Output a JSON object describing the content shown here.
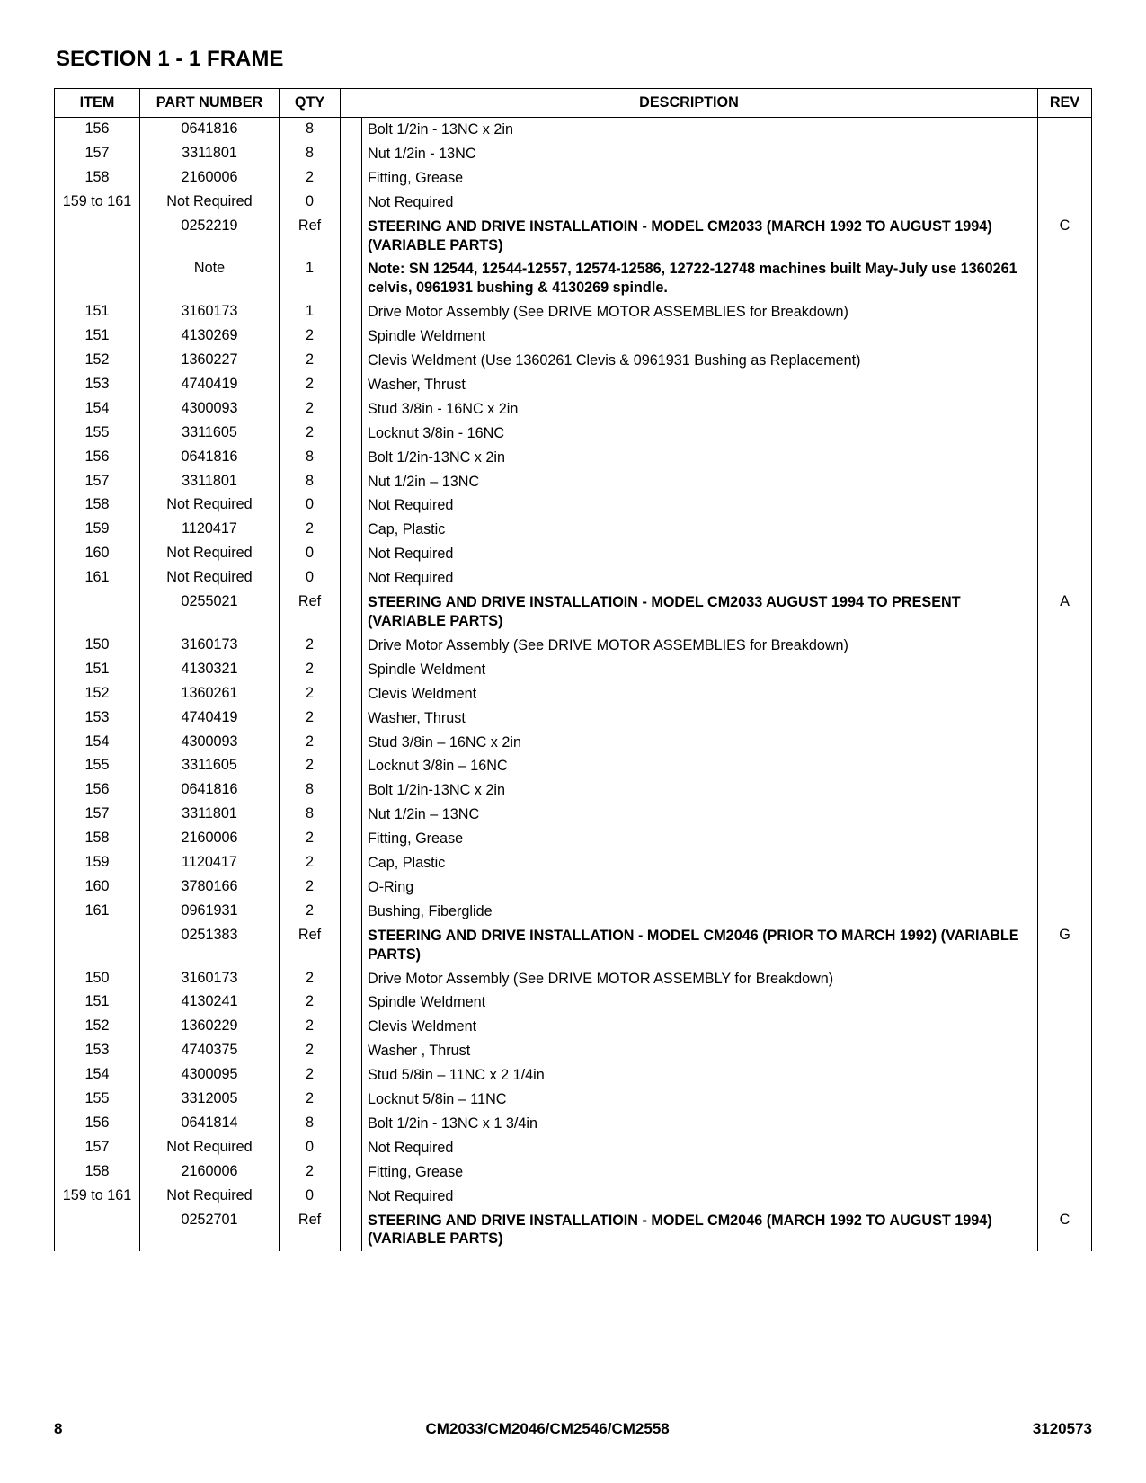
{
  "section_title": "SECTION 1 - 1 FRAME",
  "columns": {
    "item": "ITEM",
    "part": "PART NUMBER",
    "qty": "QTY",
    "desc": "DESCRIPTION",
    "rev": "REV"
  },
  "rows": [
    {
      "item": "156",
      "part": "0641816",
      "qty": "8",
      "desc": "Bolt 1/2in - 13NC x 2in",
      "rev": ""
    },
    {
      "item": "157",
      "part": "3311801",
      "qty": "8",
      "desc": "Nut 1/2in - 13NC",
      "rev": ""
    },
    {
      "item": "158",
      "part": "2160006",
      "qty": "2",
      "desc": "Fitting, Grease",
      "rev": ""
    },
    {
      "item": "159 to 161",
      "part": "Not Required",
      "qty": "0",
      "desc": "Not Required",
      "rev": ""
    },
    {
      "item": "",
      "part": "0252219",
      "qty": "Ref",
      "desc": "STEERING AND DRIVE INSTALLATIOIN - MODEL CM2033 (MARCH 1992 TO AUGUST 1994) (VARIABLE PARTS)",
      "rev": "C",
      "bold": true
    },
    {
      "item": "",
      "part": "Note",
      "qty": "1",
      "desc": "Note: SN 12544, 12544-12557, 12574-12586, 12722-12748 machines built May-July use 1360261 celvis, 0961931 bushing & 4130269 spindle.",
      "rev": "",
      "bold": true
    },
    {
      "item": "151",
      "part": "3160173",
      "qty": "1",
      "desc": "Drive Motor Assembly (See DRIVE MOTOR ASSEMBLIES for Breakdown)",
      "rev": ""
    },
    {
      "item": "151",
      "part": "4130269",
      "qty": "2",
      "desc": "Spindle Weldment",
      "rev": ""
    },
    {
      "item": "152",
      "part": "1360227",
      "qty": "2",
      "desc": "Clevis Weldment (Use 1360261 Clevis & 0961931 Bushing as Replacement)",
      "rev": ""
    },
    {
      "item": "153",
      "part": "4740419",
      "qty": "2",
      "desc": "Washer, Thrust",
      "rev": ""
    },
    {
      "item": "154",
      "part": "4300093",
      "qty": "2",
      "desc": "Stud 3/8in - 16NC x 2in",
      "rev": ""
    },
    {
      "item": "155",
      "part": "3311605",
      "qty": "2",
      "desc": "Locknut 3/8in - 16NC",
      "rev": ""
    },
    {
      "item": "156",
      "part": "0641816",
      "qty": "8",
      "desc": "Bolt 1/2in-13NC x 2in",
      "rev": ""
    },
    {
      "item": "157",
      "part": "3311801",
      "qty": "8",
      "desc": "Nut 1/2in – 13NC",
      "rev": ""
    },
    {
      "item": "158",
      "part": "Not Required",
      "qty": "0",
      "desc": "Not Required",
      "rev": ""
    },
    {
      "item": "159",
      "part": "1120417",
      "qty": "2",
      "desc": "Cap, Plastic",
      "rev": ""
    },
    {
      "item": "160",
      "part": "Not Required",
      "qty": "0",
      "desc": "Not Required",
      "rev": ""
    },
    {
      "item": "161",
      "part": "Not Required",
      "qty": "0",
      "desc": "Not Required",
      "rev": ""
    },
    {
      "item": "",
      "part": "0255021",
      "qty": "Ref",
      "desc": "STEERING AND DRIVE INSTALLATIOIN - MODEL CM2033 AUGUST 1994 TO PRESENT (VARIABLE PARTS)",
      "rev": "A",
      "bold": true
    },
    {
      "item": "150",
      "part": "3160173",
      "qty": "2",
      "desc": "Drive Motor Assembly (See DRIVE MOTOR ASSEMBLIES for Breakdown)",
      "rev": ""
    },
    {
      "item": "151",
      "part": "4130321",
      "qty": "2",
      "desc": "Spindle Weldment",
      "rev": ""
    },
    {
      "item": "152",
      "part": "1360261",
      "qty": "2",
      "desc": "Clevis Weldment",
      "rev": ""
    },
    {
      "item": "153",
      "part": "4740419",
      "qty": "2",
      "desc": "Washer, Thrust",
      "rev": ""
    },
    {
      "item": "154",
      "part": "4300093",
      "qty": "2",
      "desc": "Stud 3/8in – 16NC x 2in",
      "rev": ""
    },
    {
      "item": "155",
      "part": "3311605",
      "qty": "2",
      "desc": "Locknut 3/8in – 16NC",
      "rev": ""
    },
    {
      "item": "156",
      "part": "0641816",
      "qty": "8",
      "desc": "Bolt 1/2in-13NC x 2in",
      "rev": ""
    },
    {
      "item": "157",
      "part": "3311801",
      "qty": "8",
      "desc": "Nut 1/2in – 13NC",
      "rev": ""
    },
    {
      "item": "158",
      "part": "2160006",
      "qty": "2",
      "desc": "Fitting, Grease",
      "rev": ""
    },
    {
      "item": "159",
      "part": "1120417",
      "qty": "2",
      "desc": "Cap, Plastic",
      "rev": ""
    },
    {
      "item": "160",
      "part": "3780166",
      "qty": "2",
      "desc": "O-Ring",
      "rev": ""
    },
    {
      "item": "161",
      "part": "0961931",
      "qty": "2",
      "desc": "Bushing, Fiberglide",
      "rev": ""
    },
    {
      "item": "",
      "part": "0251383",
      "qty": "Ref",
      "desc": "STEERING AND DRIVE INSTALLATION - MODEL CM2046 (PRIOR TO MARCH 1992) (VARIABLE PARTS)",
      "rev": "G",
      "bold": true
    },
    {
      "item": "150",
      "part": "3160173",
      "qty": "2",
      "desc": "Drive Motor Assembly (See DRIVE MOTOR ASSEMBLY for Breakdown)",
      "rev": ""
    },
    {
      "item": "151",
      "part": "4130241",
      "qty": "2",
      "desc": "Spindle Weldment",
      "rev": ""
    },
    {
      "item": "152",
      "part": "1360229",
      "qty": "2",
      "desc": "Clevis Weldment",
      "rev": ""
    },
    {
      "item": "153",
      "part": "4740375",
      "qty": "2",
      "desc": "Washer , Thrust",
      "rev": ""
    },
    {
      "item": "154",
      "part": "4300095",
      "qty": "2",
      "desc": "Stud 5/8in – 11NC x 2 1/4in",
      "rev": ""
    },
    {
      "item": "155",
      "part": "3312005",
      "qty": "2",
      "desc": "Locknut 5/8in – 11NC",
      "rev": ""
    },
    {
      "item": "156",
      "part": "0641814",
      "qty": "8",
      "desc": "Bolt 1/2in - 13NC x 1 3/4in",
      "rev": ""
    },
    {
      "item": "157",
      "part": "Not Required",
      "qty": "0",
      "desc": "Not Required",
      "rev": ""
    },
    {
      "item": "158",
      "part": "2160006",
      "qty": "2",
      "desc": "Fitting, Grease",
      "rev": ""
    },
    {
      "item": "159 to 161",
      "part": "Not Required",
      "qty": "0",
      "desc": "Not Required",
      "rev": ""
    },
    {
      "item": "",
      "part": "0252701",
      "qty": "Ref",
      "desc": "STEERING AND DRIVE INSTALLATIOIN - MODEL CM2046 (MARCH 1992 TO AUGUST 1994) (VARIABLE PARTS)",
      "rev": "C",
      "bold": true
    }
  ],
  "footer": {
    "page_number": "8",
    "models": "CM2033/CM2046/CM2546/CM2558",
    "doc_number": "3120573"
  }
}
